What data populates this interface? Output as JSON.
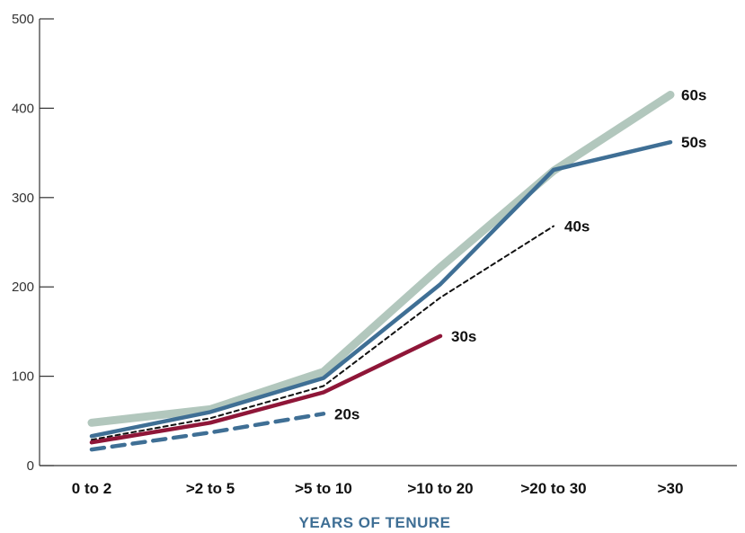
{
  "chart_data": {
    "type": "line",
    "title": "",
    "xlabel": "YEARS OF TENURE",
    "ylabel": "",
    "ylim": [
      0,
      500
    ],
    "yticks": [
      0,
      100,
      200,
      300,
      400,
      500
    ],
    "categories": [
      "0 to 2",
      ">2 to 5",
      ">5 to 10",
      ">10 to 20",
      ">20 to 30",
      ">30"
    ],
    "grid": false,
    "series": [
      {
        "name": "60s",
        "values": [
          48,
          63,
          105,
          222,
          330,
          415
        ],
        "color": "#b2c7bd",
        "style": "thick"
      },
      {
        "name": "50s",
        "values": [
          33,
          60,
          98,
          203,
          331,
          362
        ],
        "color": "#3f6f95",
        "style": "solid"
      },
      {
        "name": "40s",
        "values": [
          29,
          53,
          89,
          188,
          268,
          null
        ],
        "color": "#111111",
        "style": "dotted"
      },
      {
        "name": "30s",
        "values": [
          26,
          48,
          82,
          145,
          null,
          null
        ],
        "color": "#8f1638",
        "style": "solid"
      },
      {
        "name": "20s",
        "values": [
          18,
          37,
          58,
          null,
          null,
          null
        ],
        "color": "#3f6f95",
        "style": "dashed"
      }
    ],
    "xlabel_color": "#3f6f95"
  }
}
